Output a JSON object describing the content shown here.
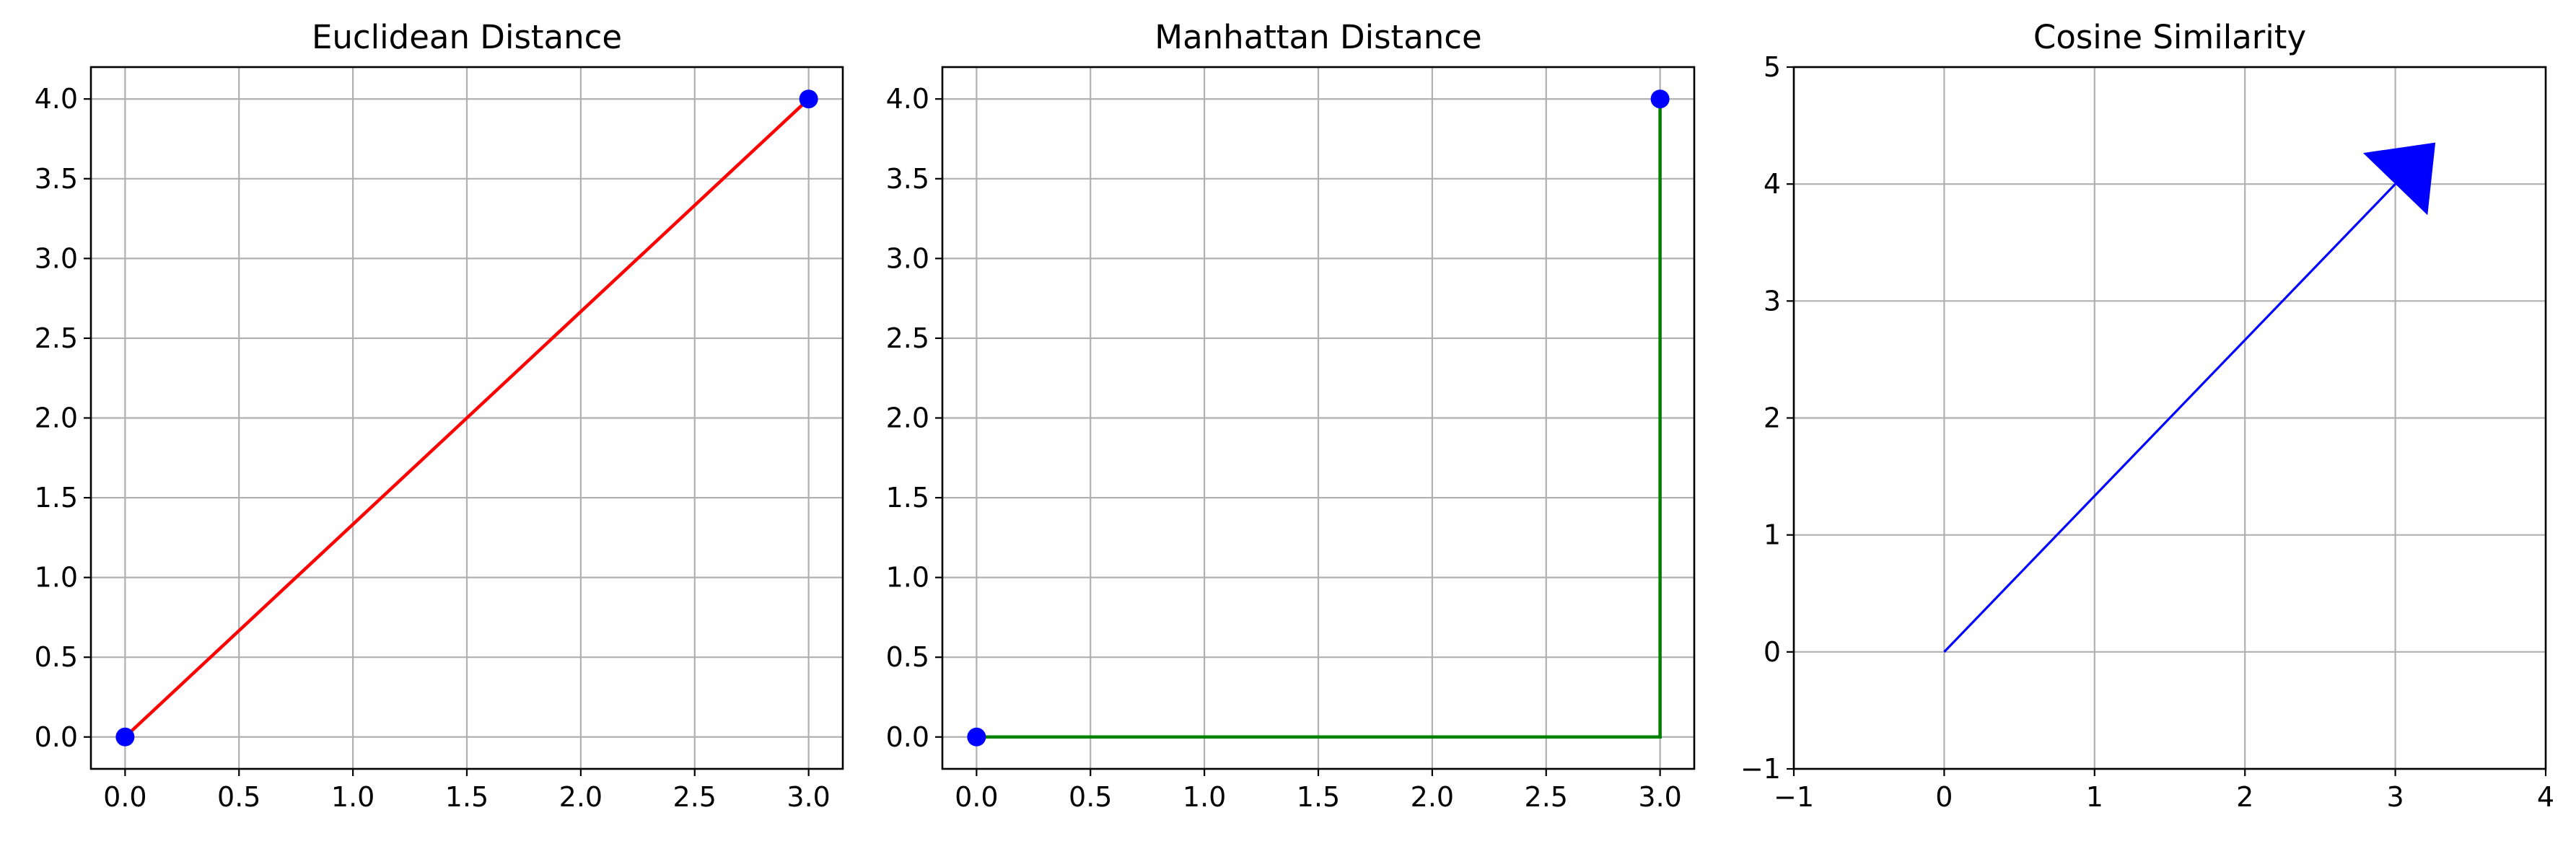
{
  "chart_data": [
    {
      "type": "line",
      "title": "Euclidean Distance",
      "xlim": [
        -0.15,
        3.15
      ],
      "ylim": [
        -0.2,
        4.2
      ],
      "xticks": [
        0.0,
        0.5,
        1.0,
        1.5,
        2.0,
        2.5,
        3.0
      ],
      "xtick_labels": [
        "0.0",
        "0.5",
        "1.0",
        "1.5",
        "2.0",
        "2.5",
        "3.0"
      ],
      "yticks": [
        0.0,
        0.5,
        1.0,
        1.5,
        2.0,
        2.5,
        3.0,
        3.5,
        4.0
      ],
      "ytick_labels": [
        "0.0",
        "0.5",
        "1.0",
        "1.5",
        "2.0",
        "2.5",
        "3.0",
        "3.5",
        "4.0"
      ],
      "grid": true,
      "points": [
        {
          "x": 0,
          "y": 0
        },
        {
          "x": 3,
          "y": 4
        }
      ],
      "point_color": "#0000ff",
      "lines": [
        {
          "x": [
            0,
            3
          ],
          "y": [
            0,
            4
          ],
          "color": "#ff0000"
        }
      ]
    },
    {
      "type": "line",
      "title": "Manhattan Distance",
      "xlim": [
        -0.15,
        3.15
      ],
      "ylim": [
        -0.2,
        4.2
      ],
      "xticks": [
        0.0,
        0.5,
        1.0,
        1.5,
        2.0,
        2.5,
        3.0
      ],
      "xtick_labels": [
        "0.0",
        "0.5",
        "1.0",
        "1.5",
        "2.0",
        "2.5",
        "3.0"
      ],
      "yticks": [
        0.0,
        0.5,
        1.0,
        1.5,
        2.0,
        2.5,
        3.0,
        3.5,
        4.0
      ],
      "ytick_labels": [
        "0.0",
        "0.5",
        "1.0",
        "1.5",
        "2.0",
        "2.5",
        "3.0",
        "3.5",
        "4.0"
      ],
      "grid": true,
      "points": [
        {
          "x": 0,
          "y": 0
        },
        {
          "x": 3,
          "y": 4
        }
      ],
      "point_color": "#0000ff",
      "lines": [
        {
          "x": [
            0,
            3
          ],
          "y": [
            0,
            0
          ],
          "color": "#008000"
        },
        {
          "x": [
            3,
            3
          ],
          "y": [
            0,
            4
          ],
          "color": "#008000"
        }
      ]
    },
    {
      "type": "line",
      "title": "Cosine Similarity",
      "xlim": [
        -1,
        4
      ],
      "ylim": [
        -1,
        5
      ],
      "xticks": [
        -1,
        0,
        1,
        2,
        3,
        4
      ],
      "xtick_labels": [
        "−1",
        "0",
        "1",
        "2",
        "3",
        "4"
      ],
      "yticks": [
        -1,
        0,
        1,
        2,
        3,
        4,
        5
      ],
      "ytick_labels": [
        "−1",
        "0",
        "1",
        "2",
        "3",
        "4",
        "5"
      ],
      "grid": true,
      "points": [],
      "lines": [],
      "arrow": {
        "x": 0,
        "y": 0,
        "dx": 3,
        "dy": 4,
        "color": "#0000ff"
      }
    }
  ]
}
